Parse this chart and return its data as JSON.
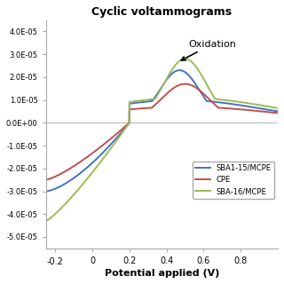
{
  "title": "Cyclic voltammograms",
  "xlabel": "Potential applied (V)",
  "xlim": [
    -0.25,
    1.0
  ],
  "ylim": [
    -5.5e-05,
    4.5e-05
  ],
  "xticks": [
    0,
    0.2,
    0.4,
    0.6,
    0.8
  ],
  "xtick_extra_label": "-0.2",
  "yticks": [
    -5e-05,
    -4e-05,
    -3e-05,
    -2e-05,
    -1e-05,
    0.0,
    1e-05,
    2e-05,
    3e-05,
    4e-05
  ],
  "ytick_labels": [
    "-5.0E-05",
    "-4.0E-05",
    "-3.0E-05",
    "-2.0E-05",
    "-1.0E-05",
    "0.0E+00",
    "1.0E-05",
    "2.0E-05",
    "3.0E-05",
    "4.0E-05"
  ],
  "colors": {
    "SBA1-15/MCPE": "#4472C4",
    "CPE": "#C0504D",
    "SBA-16/MCPE": "#9BBB59"
  },
  "legend_labels": [
    "SBA1-15/MCPE",
    "CPE",
    "SBA-16/MCPE"
  ],
  "annotation_text": "Oxidation",
  "background_color": "#FFFFFF"
}
